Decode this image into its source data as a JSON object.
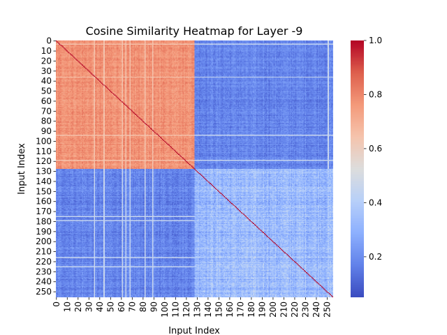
{
  "chart_data": {
    "type": "heatmap",
    "title": "Cosine Similarity Heatmap for Layer -9",
    "xlabel": "Input Index",
    "ylabel": "Input Index",
    "n": 256,
    "x_tick_labels": [
      "0",
      "10",
      "20",
      "30",
      "40",
      "50",
      "60",
      "70",
      "80",
      "90",
      "100",
      "110",
      "120",
      "130",
      "140",
      "150",
      "160",
      "170",
      "180",
      "190",
      "200",
      "210",
      "220",
      "230",
      "240",
      "250"
    ],
    "y_tick_labels": [
      "0",
      "10",
      "20",
      "30",
      "40",
      "50",
      "60",
      "70",
      "80",
      "90",
      "100",
      "110",
      "120",
      "130",
      "140",
      "150",
      "160",
      "170",
      "180",
      "190",
      "200",
      "210",
      "220",
      "230",
      "240",
      "250"
    ],
    "colormap": "coolwarm",
    "clim": [
      0.05,
      1.0
    ],
    "colorbar_ticks": [
      {
        "value": 1.0,
        "label": "1.0"
      },
      {
        "value": 0.8,
        "label": "0.8"
      },
      {
        "value": 0.6,
        "label": "0.6"
      },
      {
        "value": 0.4,
        "label": "0.4"
      },
      {
        "value": 0.2,
        "label": "0.2"
      }
    ],
    "blocks": [
      {
        "rows": [
          0,
          127
        ],
        "cols": [
          0,
          127
        ],
        "approx_value": 0.78,
        "description_value": "high"
      },
      {
        "rows": [
          128,
          255
        ],
        "cols": [
          128,
          255
        ],
        "approx_value": 0.33
      },
      {
        "rows": [
          0,
          127
        ],
        "cols": [
          128,
          255
        ],
        "approx_value": 0.18
      },
      {
        "rows": [
          128,
          255
        ],
        "cols": [
          0,
          127
        ],
        "approx_value": 0.18
      }
    ],
    "diagonal_value": 1.0,
    "grid": false,
    "colorbar_position": "right"
  }
}
